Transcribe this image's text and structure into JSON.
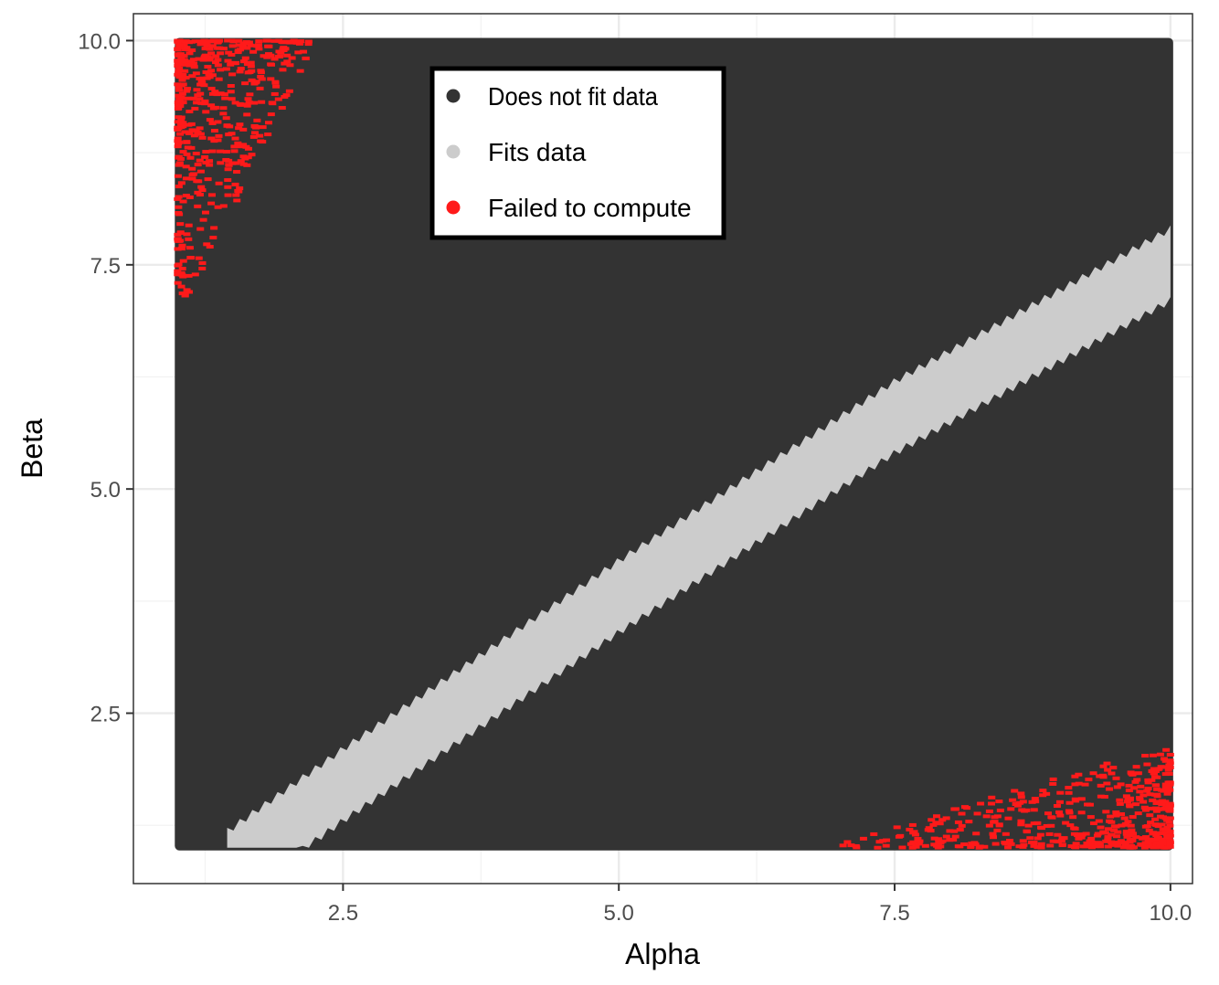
{
  "chart_data": {
    "type": "scatter",
    "title": "",
    "xlabel": "Alpha",
    "ylabel": "Beta",
    "xlim": [
      0.6,
      10.2
    ],
    "ylim": [
      0.6,
      10.3
    ],
    "x_ticks": [
      2.5,
      5.0,
      7.5,
      10.0
    ],
    "y_ticks": [
      2.5,
      5.0,
      7.5,
      10.0
    ],
    "x_tick_labels": [
      "2.5",
      "5.0",
      "7.5",
      "10.0"
    ],
    "y_tick_labels": [
      "2.5",
      "5.0",
      "7.5",
      "10.0"
    ],
    "grid": true,
    "legend_position": "top-center",
    "grid_extent": {
      "alpha": [
        1.0,
        10.0
      ],
      "beta": [
        1.0,
        10.0
      ]
    },
    "series": [
      {
        "name": "Does not fit data",
        "color": "#333333",
        "region": "all parameter combinations outside the band",
        "extent": {
          "alpha": [
            1.0,
            10.0
          ],
          "beta": [
            1.0,
            10.0
          ]
        }
      },
      {
        "name": "Fits data",
        "color": "#cccccc",
        "band_center": [
          {
            "alpha": 1.7,
            "beta": 1.0
          },
          {
            "alpha": 2.5,
            "beta": 1.7
          },
          {
            "alpha": 5.0,
            "beta": 3.8
          },
          {
            "alpha": 7.5,
            "beta": 5.8
          },
          {
            "alpha": 10.0,
            "beta": 7.5
          }
        ],
        "band_half_width_beta": 0.4
      },
      {
        "name": "Failed to compute",
        "color": "#ff1a1a",
        "clusters": [
          {
            "alpha": [
              1.0,
              2.2
            ],
            "beta": [
              7.0,
              10.0
            ],
            "location": "top-left"
          },
          {
            "alpha": [
              7.0,
              10.0
            ],
            "beta": [
              1.0,
              2.1
            ],
            "location": "bottom-right"
          }
        ]
      }
    ]
  }
}
